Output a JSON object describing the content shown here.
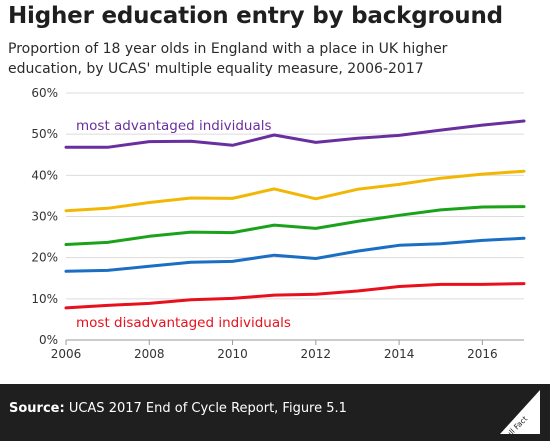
{
  "title": "Higher education entry by background",
  "subtitle": "Proportion of 18 year olds in England with a place in UK higher education, by UCAS' multiple equality measure, 2006-2017",
  "footer": {
    "source_label": "Source:",
    "source_text": " UCAS 2017 End of Cycle Report, Figure 5.1",
    "logo_text": "Full Fact"
  },
  "chart_data": {
    "type": "line",
    "x": [
      2006,
      2007,
      2008,
      2009,
      2010,
      2011,
      2012,
      2013,
      2014,
      2015,
      2016,
      2017
    ],
    "xticks": [
      "2006",
      "2008",
      "2010",
      "2012",
      "2014",
      "2016"
    ],
    "yticks": [
      "0%",
      "10%",
      "20%",
      "30%",
      "40%",
      "50%",
      "60%"
    ],
    "ylim": [
      0,
      60
    ],
    "xlim": [
      2006,
      2017
    ],
    "grid": true,
    "series": [
      {
        "values": [
          46.8,
          46.8,
          48.2,
          48.3,
          47.3,
          49.8,
          48.0,
          49.0,
          49.7,
          51.0,
          52.2,
          53.2
        ],
        "color": "#6a2f9e"
      },
      {
        "values": [
          31.4,
          32.0,
          33.4,
          34.5,
          34.4,
          36.7,
          34.3,
          36.6,
          37.8,
          39.3,
          40.3,
          41.0
        ],
        "color": "#f2b705"
      },
      {
        "values": [
          23.2,
          23.7,
          25.2,
          26.2,
          26.1,
          27.9,
          27.1,
          28.8,
          30.3,
          31.6,
          32.3,
          32.4
        ],
        "color": "#1aa31a"
      },
      {
        "values": [
          16.7,
          16.9,
          17.9,
          18.9,
          19.1,
          20.6,
          19.8,
          21.6,
          23.0,
          23.4,
          24.2,
          24.7
        ],
        "color": "#1a6fc4"
      },
      {
        "values": [
          7.8,
          8.4,
          8.9,
          9.8,
          10.1,
          10.9,
          11.1,
          11.9,
          13.0,
          13.5,
          13.5,
          13.7
        ],
        "color": "#e8101d"
      }
    ],
    "annotations": [
      {
        "text": "most advantaged individuals",
        "color": "#6a2f9e"
      },
      {
        "text": "most disadvantaged individuals",
        "color": "#e8101d"
      }
    ]
  }
}
